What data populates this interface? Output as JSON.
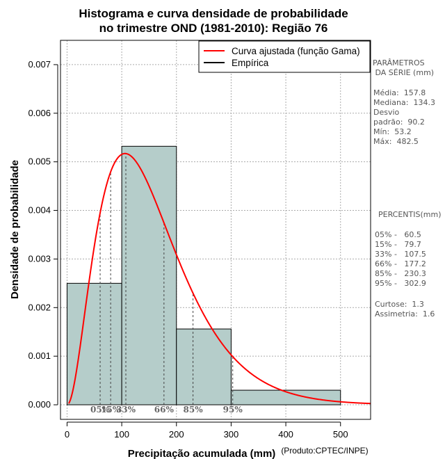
{
  "chart_data": {
    "type": "bar",
    "title": [
      "Histograma e curva densidade de probabilidade",
      "no trimestre OND (1981-2010): Região 76"
    ],
    "xlabel": "Precipitação acumulada (mm)",
    "ylabel": "Densidade de probabilidade",
    "credit": "(Produto:CPTEC/INPE)",
    "xlim": [
      -12,
      555
    ],
    "ylim": [
      -0.0003,
      0.0075
    ],
    "x_ticks": [
      0,
      100,
      200,
      300,
      400,
      500
    ],
    "x_tick_labels": [
      "0",
      "100",
      "200",
      "300",
      "400",
      "500"
    ],
    "y_ticks": [
      0.0,
      0.001,
      0.002,
      0.003,
      0.004,
      0.005,
      0.006,
      0.007
    ],
    "y_tick_labels": [
      "0.000",
      "0.001",
      "0.002",
      "0.003",
      "0.004",
      "0.005",
      "0.006",
      "0.007"
    ],
    "grid": true,
    "histogram": [
      {
        "x0": 0,
        "x1": 100,
        "density": 0.0025
      },
      {
        "x0": 100,
        "x1": 200,
        "density": 0.00532
      },
      {
        "x0": 200,
        "x1": 300,
        "density": 0.00156
      },
      {
        "x0": 300,
        "x1": 500,
        "density": 0.0003
      }
    ],
    "gamma_curve": {
      "mean": 157.8,
      "mode": 106,
      "x_start": 3,
      "x_end": 555
    },
    "legend": {
      "position": "top-right",
      "entries": [
        {
          "label": "Curva ajustada (função Gama)",
          "color": "#ff0000"
        },
        {
          "label": "Empírica",
          "color": "#000000"
        }
      ]
    },
    "percentile_markers": [
      {
        "label": "05%",
        "value": 60.5
      },
      {
        "label": "15%",
        "value": 79.7
      },
      {
        "label": "33%",
        "value": 107.5
      },
      {
        "label": "66%",
        "value": 177.2
      },
      {
        "label": "85%",
        "value": 230.3
      },
      {
        "label": "95%",
        "value": 302.9
      }
    ],
    "colors": {
      "bar_fill": "#b5cdca",
      "curve": "#ff0000",
      "grid": "#aaaaaa",
      "side_text": "#555555",
      "marker_text": "#666666"
    }
  },
  "side_panel": {
    "params_title": [
      "PARÂMETROS",
      " DA SÉRIE (mm)"
    ],
    "params": [
      "Média:  157.8",
      "Mediana:  134.3",
      "Desvio",
      "padrão:  90.2",
      "Mín:  53.2",
      "Máx:  482.5"
    ],
    "percentis_title": "PERCENTIS(mm)",
    "percentis": [
      "05% -   60.5",
      "15% -   79.7",
      "33% -   107.5",
      "66% -   177.2",
      "85% -   230.3",
      "95% -   302.9"
    ],
    "stats": [
      "Curtose:  1.3",
      "Assimetria:  1.6"
    ]
  }
}
